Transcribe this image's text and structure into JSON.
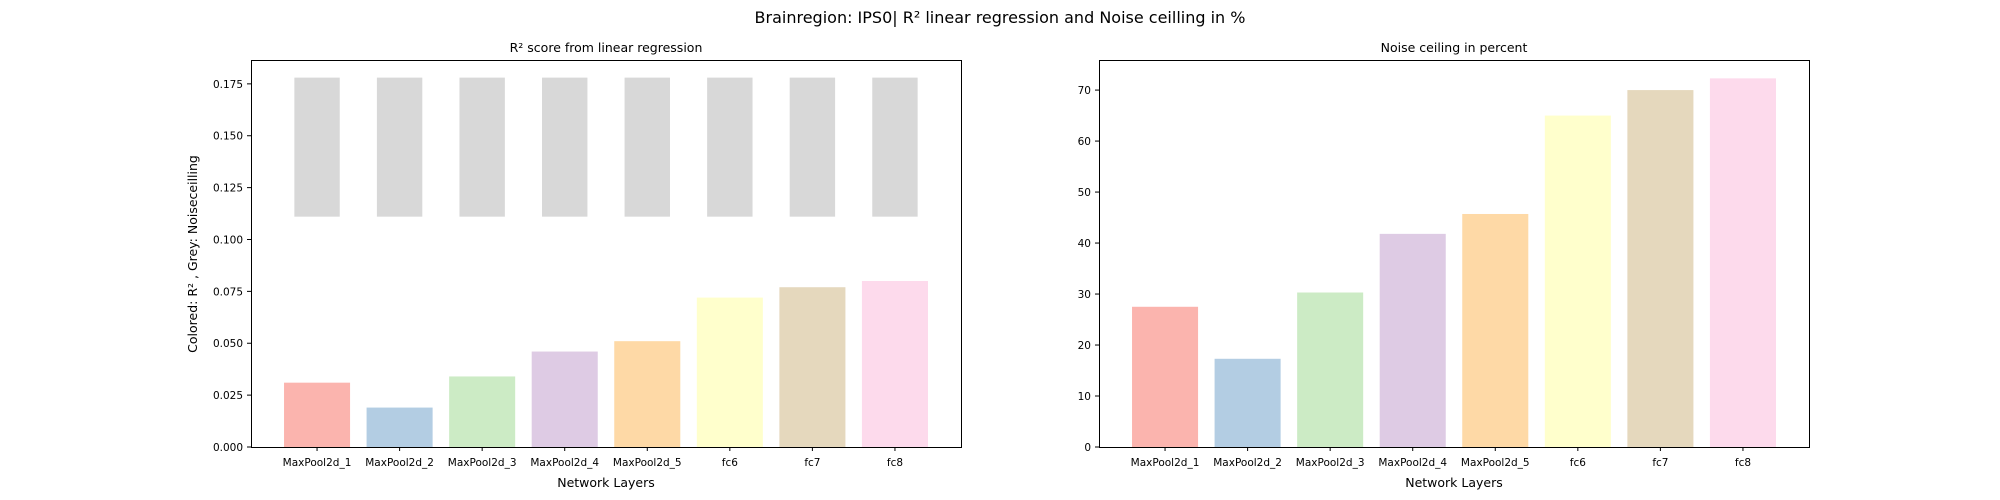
{
  "figure": {
    "suptitle": "Brainregion: IPS0| R² linear regression and Noise ceilling in %"
  },
  "chart_data": [
    {
      "type": "bar",
      "title": "R² score from linear regression",
      "xlabel": "Network Layers",
      "ylabel": "Colored: R² , Grey: Noiseceilling",
      "categories": [
        "MaxPool2d_1",
        "MaxPool2d_2",
        "MaxPool2d_3",
        "MaxPool2d_4",
        "MaxPool2d_5",
        "fc6",
        "fc7",
        "fc8"
      ],
      "series": [
        {
          "values": [
            0.031,
            0.019,
            0.034,
            0.046,
            0.051,
            0.072,
            0.077,
            0.08
          ]
        }
      ],
      "noise_ceiling_band": {
        "lower": 0.111,
        "upper": 0.178,
        "color": "#d8d8d8"
      },
      "colors": [
        "#fbb4ae",
        "#b3cde3",
        "#ccebc5",
        "#decbe4",
        "#fed9a6",
        "#ffffcc",
        "#e5d8bd",
        "#fddaec"
      ],
      "ylim": [
        0,
        0.1865
      ],
      "yticks": [
        0.0,
        0.025,
        0.05,
        0.075,
        0.1,
        0.125,
        0.15,
        0.175
      ],
      "ytick_labels": [
        "0.000",
        "0.025",
        "0.050",
        "0.075",
        "0.100",
        "0.125",
        "0.150",
        "0.175"
      ],
      "grid": false
    },
    {
      "type": "bar",
      "title": "Noise ceiling in percent",
      "xlabel": "Network Layers",
      "ylabel": "",
      "categories": [
        "MaxPool2d_1",
        "MaxPool2d_2",
        "MaxPool2d_3",
        "MaxPool2d_4",
        "MaxPool2d_5",
        "fc6",
        "fc7",
        "fc8"
      ],
      "series": [
        {
          "values": [
            27.5,
            17.3,
            30.3,
            41.8,
            45.7,
            65.0,
            70.0,
            72.3
          ]
        }
      ],
      "colors": [
        "#fbb4ae",
        "#b3cde3",
        "#ccebc5",
        "#decbe4",
        "#fed9a6",
        "#ffffcc",
        "#e5d8bd",
        "#fddaec"
      ],
      "ylim": [
        0,
        75.9
      ],
      "yticks": [
        0,
        10,
        20,
        30,
        40,
        50,
        60,
        70
      ],
      "ytick_labels": [
        "0",
        "10",
        "20",
        "30",
        "40",
        "50",
        "60",
        "70"
      ],
      "grid": false
    }
  ]
}
